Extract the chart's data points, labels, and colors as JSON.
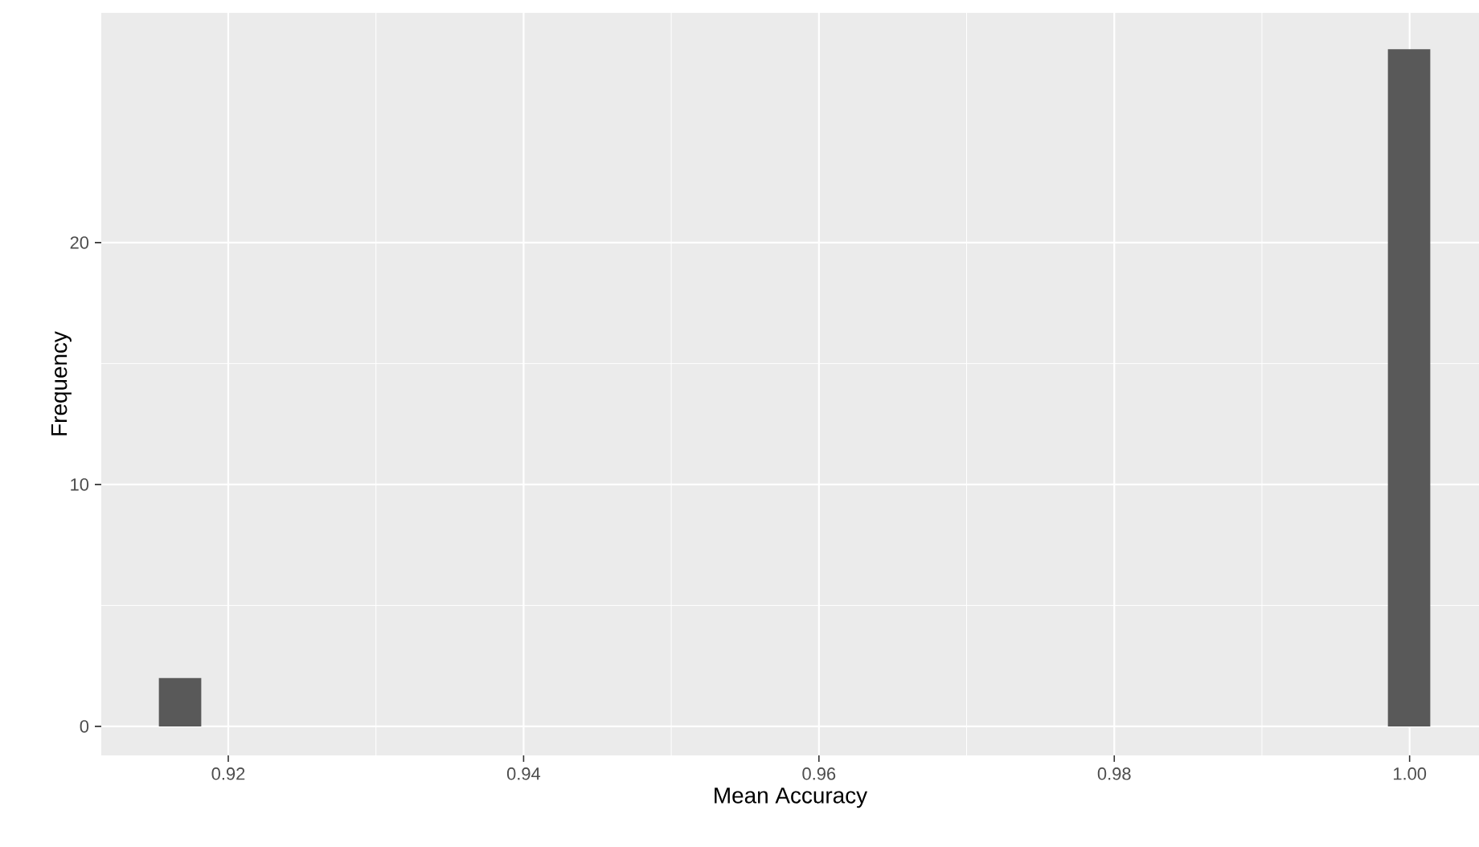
{
  "chart_data": {
    "type": "histogram",
    "xlabel": "Mean Accuracy",
    "ylabel": "Frequency",
    "bins": [
      0.9153,
      0.91817,
      0.92104,
      0.92391,
      0.92678,
      0.92965,
      0.93252,
      0.93539,
      0.93826,
      0.94113,
      0.944,
      0.94687,
      0.94974,
      0.95261,
      0.95548,
      0.95835,
      0.96122,
      0.96409,
      0.96696,
      0.96983,
      0.9727,
      0.97557,
      0.97844,
      0.98131,
      0.98418,
      0.98705,
      0.98992,
      0.99279,
      0.99566,
      0.99853,
      1.0014
    ],
    "values": [
      2,
      0,
      0,
      0,
      0,
      0,
      0,
      0,
      0,
      0,
      0,
      0,
      0,
      0,
      0,
      0,
      0,
      0,
      0,
      0,
      0,
      0,
      0,
      0,
      0,
      0,
      0,
      0,
      0,
      28
    ],
    "color": "#595959",
    "xlim": [
      0.9114,
      1.0047
    ],
    "ylim": [
      -1.2,
      29.5
    ],
    "xticks": [
      0.92,
      0.94,
      0.96,
      0.98,
      {
        "value": 1.0,
        "label": "1.00"
      }
    ],
    "yticks": [
      0,
      10,
      20
    ],
    "grid": true
  }
}
